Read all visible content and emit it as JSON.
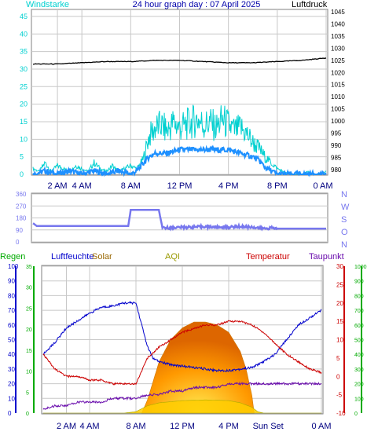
{
  "header": {
    "title": "24 hour graph day : 07 April 2025",
    "left_label": "Windstarke",
    "right_label": "Luftdruck"
  },
  "colors": {
    "frame": "#808080",
    "grid": "#c8c8c8",
    "wind_gust": "#00d0d0",
    "wind_avg": "#1e90ff",
    "pressure": "#000000",
    "direction": "#7777ee",
    "humidity": "#0000cc",
    "temperature": "#cc0000",
    "dewpoint": "#6a0dad",
    "solar_fill": "#ff9900",
    "solar_area": "#ffcc00",
    "rain": "#00aa00",
    "aqi": "#999900",
    "tick_left_blue": "#0000cc",
    "tick_green": "#00aa00",
    "tick_red": "#cc0000"
  },
  "chart_data": [
    {
      "type": "line",
      "x_ticks": [
        "2 AM",
        "4 AM",
        "8 AM",
        "12 PM",
        "4 PM",
        "8 PM",
        "0 AM"
      ],
      "y_left": {
        "label": "Windstarke",
        "ticks": [
          0,
          5,
          10,
          15,
          20,
          25,
          30,
          35,
          40,
          45
        ],
        "ylim": [
          0,
          47
        ]
      },
      "y_right": {
        "label": "Luftdruck",
        "ticks": [
          980,
          985,
          990,
          995,
          1000,
          1005,
          1010,
          1015,
          1020,
          1025,
          1030,
          1035,
          1040,
          1045
        ],
        "ylim": [
          978,
          1046
        ]
      },
      "series": [
        {
          "name": "gust",
          "axis": "left",
          "x": [
            0,
            0.5,
            1,
            1.5,
            2,
            2.5,
            3,
            3.5,
            4,
            4.5,
            5,
            5.5,
            6,
            6.5,
            7,
            7.5,
            8,
            8.5,
            9,
            9.5,
            10,
            10.5,
            11,
            11.5,
            12,
            12.5,
            13,
            13.5,
            14,
            14.5,
            15,
            15.5,
            16,
            16.5,
            17,
            17.5,
            18,
            18.5,
            19,
            19.5,
            20,
            20.5,
            21,
            21.5,
            22,
            22.5,
            23,
            23.5,
            24
          ],
          "values": [
            2,
            1,
            4,
            1,
            3,
            2,
            1,
            3,
            2,
            1,
            4,
            2,
            1,
            3,
            1,
            2,
            3,
            2,
            5,
            13,
            16,
            17,
            15,
            18,
            16,
            17,
            18,
            19,
            17,
            18,
            16,
            19,
            17,
            15,
            16,
            14,
            11,
            9,
            6,
            4,
            2,
            1,
            0,
            0,
            0,
            1,
            0,
            0,
            1
          ]
        },
        {
          "name": "average",
          "axis": "left",
          "x": [
            0,
            1,
            2,
            3,
            4,
            5,
            6,
            7,
            8,
            8.5,
            9,
            9.5,
            10,
            11,
            12,
            13,
            14,
            15,
            16,
            17,
            18,
            18.5,
            19,
            19.5,
            20,
            21,
            22,
            23,
            24
          ],
          "values": [
            0,
            1,
            0,
            1,
            0,
            1,
            0,
            1,
            0,
            1,
            3,
            5,
            6,
            6,
            7,
            7,
            7,
            7,
            7,
            6,
            5,
            4,
            2,
            1,
            0,
            0,
            0,
            0,
            0
          ]
        },
        {
          "name": "pressure",
          "axis": "right",
          "x": [
            0,
            2,
            4,
            6,
            8,
            10,
            12,
            14,
            16,
            18,
            20,
            22,
            24
          ],
          "values": [
            1023.5,
            1023.5,
            1024,
            1024.5,
            1024.5,
            1025,
            1025,
            1024.5,
            1024,
            1024,
            1024.5,
            1025,
            1026
          ]
        }
      ]
    },
    {
      "type": "line",
      "x_ticks": [],
      "y_left": {
        "ticks": [
          0,
          90,
          180,
          270,
          360
        ],
        "ylim": [
          0,
          360
        ]
      },
      "y_right": {
        "ticks": [
          "N",
          "W",
          "S",
          "O",
          "N"
        ]
      },
      "series": [
        {
          "name": "direction",
          "x": [
            0,
            0.3,
            1,
            2,
            3,
            4,
            5,
            6,
            7,
            7.8,
            8,
            10.3,
            10.6,
            11,
            12,
            13,
            14,
            15,
            16,
            17,
            18,
            19,
            19.5,
            20,
            21,
            22,
            23,
            24
          ],
          "values": [
            140,
            120,
            120,
            120,
            120,
            120,
            120,
            120,
            120,
            120,
            240,
            240,
            105,
            105,
            110,
            110,
            115,
            110,
            110,
            115,
            110,
            100,
            105,
            100,
            100,
            100,
            100,
            100
          ]
        }
      ]
    },
    {
      "type": "area",
      "x_ticks": [
        "2 AM",
        "4 AM",
        "8 AM",
        "12 PM",
        "4 PM",
        "Sun Set",
        "0 AM"
      ],
      "legend": [
        "Regen",
        "Luftfeuchte",
        "Solar",
        "AQI",
        "Temperatur",
        "Taupunkt"
      ],
      "y_left_blue": {
        "label": "Luftfeuchte",
        "ticks": [
          0,
          10,
          20,
          30,
          40,
          50,
          60,
          70,
          80,
          90,
          100
        ],
        "ylim": [
          0,
          100
        ]
      },
      "y_left_green": {
        "label": "Regen",
        "ticks": [
          0,
          5,
          10,
          15,
          20,
          25,
          30,
          35
        ],
        "ylim": [
          0,
          35
        ]
      },
      "y_right_red": {
        "label": "Temperatur",
        "ticks": [
          -10,
          -5,
          0,
          5,
          10,
          15,
          20,
          25,
          30
        ],
        "ylim": [
          -10,
          30
        ]
      },
      "y_right_green": {
        "ticks": [
          0,
          100,
          200,
          300,
          400,
          500,
          600,
          700,
          800,
          900,
          1000
        ],
        "ylim": [
          0,
          1000
        ]
      },
      "series": [
        {
          "name": "Luftfeuchte",
          "axis": "left_blue",
          "x": [
            0,
            1,
            2,
            3,
            4,
            5,
            6,
            7,
            8,
            8.5,
            9,
            9.5,
            10,
            11,
            12,
            13,
            14,
            15,
            16,
            17,
            18,
            19,
            20,
            21,
            22,
            23,
            24
          ],
          "values": [
            40,
            48,
            58,
            63,
            68,
            72,
            73,
            75,
            75,
            60,
            45,
            37,
            35,
            33,
            32,
            31,
            30,
            29,
            29,
            30,
            31,
            35,
            40,
            50,
            60,
            65,
            70
          ]
        },
        {
          "name": "Temperatur",
          "axis": "right_red",
          "x": [
            0,
            1,
            2,
            3,
            4,
            5,
            6,
            7,
            8,
            9,
            10,
            11,
            12,
            13,
            14,
            15,
            16,
            17,
            18,
            19,
            20,
            21,
            22,
            23,
            24
          ],
          "values": [
            6,
            2,
            0,
            0,
            -1,
            -1,
            -2,
            -2,
            -2,
            5,
            8,
            10,
            12,
            13,
            14,
            14,
            15,
            15,
            14,
            12,
            9,
            6,
            4,
            2,
            1
          ]
        },
        {
          "name": "Taupunkt",
          "axis": "right_red",
          "x": [
            0,
            1,
            2,
            3,
            4,
            5,
            6,
            7,
            8,
            9,
            10,
            11,
            12,
            13,
            14,
            15,
            16,
            17,
            18,
            19,
            20,
            21,
            22,
            23,
            24
          ],
          "values": [
            -9,
            -8,
            -8,
            -7,
            -7,
            -7,
            -6,
            -6,
            -6,
            -5,
            -5,
            -4,
            -4,
            -3,
            -3,
            -3,
            -2,
            -2,
            -2,
            -2,
            -2,
            -2,
            -2,
            -2,
            -2
          ]
        },
        {
          "name": "Solar",
          "axis": "right_green",
          "x": [
            8.5,
            9,
            10,
            11,
            12,
            13,
            14,
            15,
            16,
            17,
            17.5,
            18,
            18.2
          ],
          "values": [
            0,
            90,
            350,
            500,
            580,
            620,
            620,
            600,
            550,
            420,
            300,
            120,
            0
          ]
        },
        {
          "name": "AQI",
          "axis": "right_green",
          "x": [
            0,
            7,
            8,
            9,
            10,
            12,
            14,
            16,
            17,
            18,
            18.5,
            19,
            24
          ],
          "values": [
            0,
            0,
            10,
            50,
            70,
            85,
            90,
            85,
            70,
            40,
            10,
            0,
            0
          ]
        }
      ]
    }
  ]
}
